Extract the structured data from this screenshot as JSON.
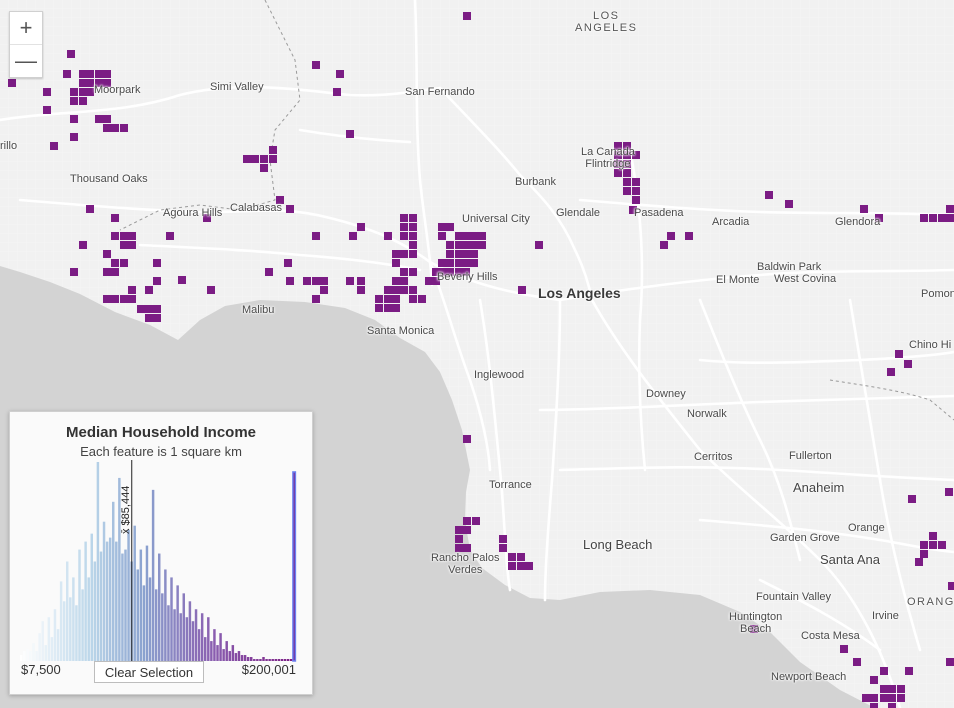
{
  "map": {
    "places": [
      {
        "id": "los-angeles-county",
        "label": "LOS\nANGELES",
        "style": "caps"
      },
      {
        "id": "simi-valley",
        "label": "Simi Valley",
        "style": "normal"
      },
      {
        "id": "moorpark",
        "label": "Moorpark",
        "style": "normal"
      },
      {
        "id": "camarillo",
        "label": "rillo",
        "style": "normal"
      },
      {
        "id": "thousand-oaks",
        "label": "Thousand Oaks",
        "style": "normal"
      },
      {
        "id": "agoura-hills",
        "label": "Agoura Hills",
        "style": "normal"
      },
      {
        "id": "calabasas",
        "label": "Calabasas",
        "style": "normal"
      },
      {
        "id": "san-fernando",
        "label": "San Fernando",
        "style": "normal"
      },
      {
        "id": "la-canada-flintridge",
        "label": "La Canada\nFlintridge",
        "style": "multi"
      },
      {
        "id": "burbank",
        "label": "Burbank",
        "style": "normal"
      },
      {
        "id": "universal-city",
        "label": "Universal City",
        "style": "normal"
      },
      {
        "id": "glendale",
        "label": "Glendale",
        "style": "normal"
      },
      {
        "id": "pasadena",
        "label": "Pasadena",
        "style": "normal"
      },
      {
        "id": "arcadia",
        "label": "Arcadia",
        "style": "normal"
      },
      {
        "id": "glendora",
        "label": "Glendora",
        "style": "normal"
      },
      {
        "id": "beverly-hills",
        "label": "Beverly Hills",
        "style": "normal"
      },
      {
        "id": "los-angeles",
        "label": "Los Angeles",
        "style": "major"
      },
      {
        "id": "el-monte",
        "label": "El Monte",
        "style": "normal"
      },
      {
        "id": "baldwin-park",
        "label": "Baldwin Park",
        "style": "normal"
      },
      {
        "id": "west-covina",
        "label": "West Covina",
        "style": "normal"
      },
      {
        "id": "pomona",
        "label": "Pomon",
        "style": "normal"
      },
      {
        "id": "malibu",
        "label": "Malibu",
        "style": "normal"
      },
      {
        "id": "santa-monica",
        "label": "Santa Monica",
        "style": "normal"
      },
      {
        "id": "chino-hills",
        "label": "Chino Hi",
        "style": "normal"
      },
      {
        "id": "inglewood",
        "label": "Inglewood",
        "style": "normal"
      },
      {
        "id": "downey",
        "label": "Downey",
        "style": "normal"
      },
      {
        "id": "norwalk",
        "label": "Norwalk",
        "style": "normal"
      },
      {
        "id": "cerritos",
        "label": "Cerritos",
        "style": "normal"
      },
      {
        "id": "fullerton",
        "label": "Fullerton",
        "style": "normal"
      },
      {
        "id": "torrance",
        "label": "Torrance",
        "style": "normal"
      },
      {
        "id": "anaheim",
        "label": "Anaheim",
        "style": "large"
      },
      {
        "id": "rancho-palos-verdes",
        "label": "Rancho Palos\nVerdes",
        "style": "multi"
      },
      {
        "id": "long-beach",
        "label": "Long Beach",
        "style": "large"
      },
      {
        "id": "orange",
        "label": "Orange",
        "style": "normal"
      },
      {
        "id": "garden-grove",
        "label": "Garden Grove",
        "style": "normal"
      },
      {
        "id": "santa-ana",
        "label": "Santa Ana",
        "style": "large"
      },
      {
        "id": "orange-county",
        "label": "ORANG",
        "style": "caps"
      },
      {
        "id": "fountain-valley",
        "label": "Fountain Valley",
        "style": "normal"
      },
      {
        "id": "huntington-beach",
        "label": "Huntington\nBeach",
        "style": "multi"
      },
      {
        "id": "irvine",
        "label": "Irvine",
        "style": "normal"
      },
      {
        "id": "costa-mesa",
        "label": "Costa Mesa",
        "style": "normal"
      },
      {
        "id": "newport-beach",
        "label": "Newport Beach",
        "style": "normal"
      }
    ],
    "highlight_color": "#7b1c84",
    "water_color": "#d3d3d3",
    "land_color": "#f6f6f6"
  },
  "zoom": {
    "in_label": "+",
    "out_label": "—"
  },
  "histogram": {
    "title": "Median Household Income",
    "subtitle": "Each feature is 1 square km",
    "min_label": "$7,500",
    "max_label": "$200,001",
    "average_label": "x̄ $85,444",
    "clear_label": "Clear Selection"
  },
  "chart_data": {
    "type": "bar",
    "title": "Median Household Income",
    "subtitle": "Each feature is 1 square km",
    "x_min": 7500,
    "x_max": 200001,
    "average": 85444,
    "values": [
      3,
      5,
      6,
      5,
      9,
      5,
      14,
      20,
      8,
      22,
      12,
      26,
      16,
      40,
      30,
      50,
      32,
      42,
      28,
      56,
      36,
      60,
      42,
      64,
      50,
      100,
      55,
      70,
      60,
      62,
      80,
      60,
      92,
      54,
      56,
      66,
      50,
      68,
      46,
      56,
      38,
      58,
      42,
      86,
      36,
      54,
      34,
      46,
      28,
      42,
      26,
      38,
      24,
      34,
      22,
      30,
      20,
      26,
      16,
      24,
      12,
      22,
      10,
      16,
      8,
      14,
      6,
      10,
      5,
      8,
      4,
      5,
      3,
      3,
      2,
      2,
      1,
      1,
      1,
      2,
      1,
      1,
      1,
      1,
      1,
      1,
      1,
      1,
      1,
      95
    ],
    "highlight_range": [
      198000,
      200001
    ]
  }
}
